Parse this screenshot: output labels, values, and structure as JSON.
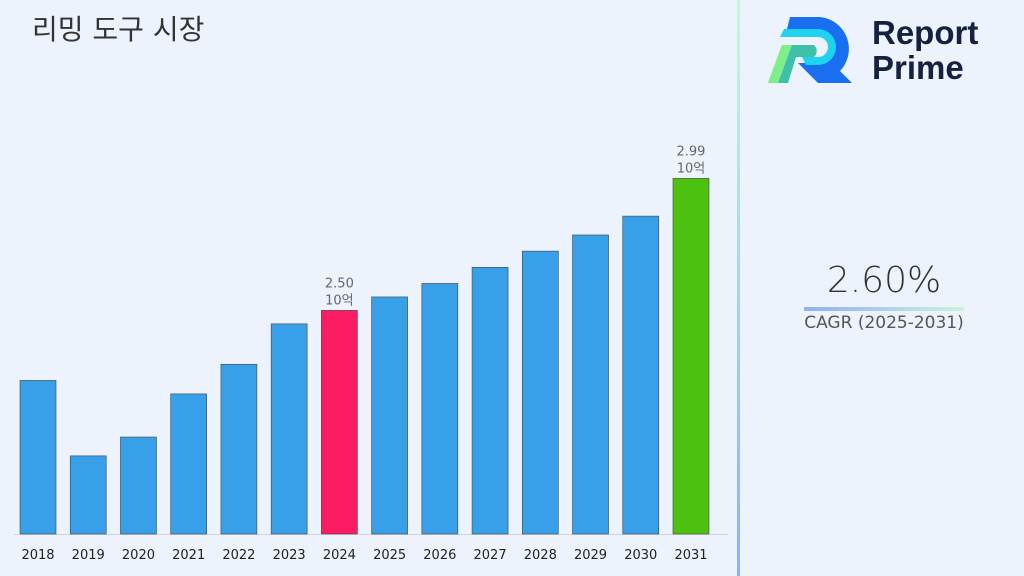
{
  "title": "리밍 도구 시장",
  "logo": {
    "line1": "Report",
    "line2": "Prime"
  },
  "cagr": {
    "value": "2.60%",
    "label": "CAGR (2025-2031)"
  },
  "chart_data": {
    "type": "bar",
    "title": "리밍 도구 시장",
    "categories": [
      "2018",
      "2019",
      "2020",
      "2021",
      "2022",
      "2023",
      "2024",
      "2025",
      "2026",
      "2027",
      "2028",
      "2029",
      "2030",
      "2031"
    ],
    "values": [
      2.24,
      1.96,
      2.03,
      2.19,
      2.3,
      2.45,
      2.5,
      2.55,
      2.6,
      2.66,
      2.72,
      2.78,
      2.85,
      2.99
    ],
    "unit": "10억",
    "ylim": [
      1.67,
      3.1
    ],
    "colors": {
      "default": "#38a0e8",
      "highlight_2024": "#fc1c64",
      "highlight_2031": "#4cc10f"
    },
    "data_labels": [
      {
        "category": "2024",
        "value": "2.50",
        "unit": "10억"
      },
      {
        "category": "2031",
        "value": "2.99",
        "unit": "10억"
      }
    ],
    "grid": false
  }
}
